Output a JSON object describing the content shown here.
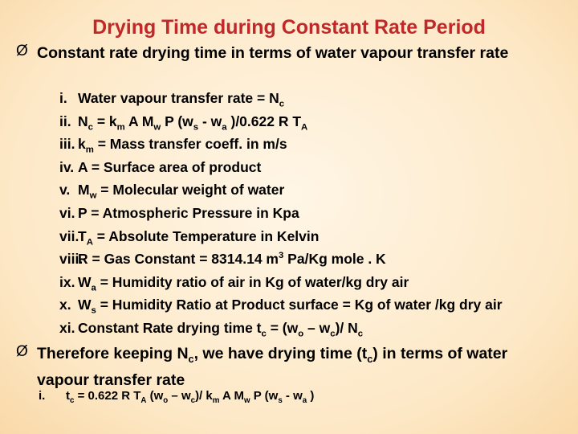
{
  "title": "Drying Time during Constant Rate Period",
  "bullets": [
    {
      "text": [
        "Constant rate drying time in terms of water vapour transfer rate"
      ],
      "items": [
        {
          "num": "i.",
          "text": [
            "Water vapour transfer rate = N",
            {
              "sub": "c"
            }
          ]
        },
        {
          "num": "ii.",
          "text": [
            "N",
            {
              "sub": "c"
            },
            " = k",
            {
              "sub": "m"
            },
            " A M",
            {
              "sub": "w"
            },
            " P (w",
            {
              "sub": "s"
            },
            " - w",
            {
              "sub": "a"
            },
            " )/0.622 R T",
            {
              "sub": "A"
            }
          ]
        },
        {
          "num": "iii.",
          "text": [
            "k",
            {
              "sub": "m"
            },
            " = Mass transfer coeff. in m/s"
          ]
        },
        {
          "num": "iv.",
          "text": [
            "A = Surface area of product"
          ]
        },
        {
          "num": "v.",
          "text": [
            "M",
            {
              "sub": "w"
            },
            " = Molecular weight of water"
          ]
        },
        {
          "num": "vi.",
          "text": [
            "P = Atmospheric Pressure in Kpa"
          ]
        },
        {
          "num": "vii.",
          "text": [
            "T",
            {
              "sub": "A"
            },
            " = Absolute Temperature in Kelvin"
          ]
        },
        {
          "num": "viii.",
          "text": [
            "R = Gas Constant = 8314.14 m",
            {
              "sup": "3"
            },
            "  Pa/Kg mole . K"
          ]
        },
        {
          "num": "ix.",
          "text": [
            "W",
            {
              "sub": "a"
            },
            " = Humidity ratio of air in Kg of water/kg dry air"
          ]
        },
        {
          "num": "x.",
          "text": [
            "W",
            {
              "sub": "s"
            },
            " = Humidity Ratio at Product surface = Kg of water /kg dry air"
          ]
        },
        {
          "num": "xi.",
          "text": [
            "Constant Rate drying time t",
            {
              "sub": "c"
            },
            " = (w",
            {
              "sub": "o"
            },
            " – w",
            {
              "sub": "c"
            },
            ")/ N",
            {
              "sub": "c"
            }
          ]
        }
      ]
    },
    {
      "text": [
        "Therefore keeping N",
        {
          "sub": "c"
        },
        ", we have drying time (t",
        {
          "sub": "c"
        },
        ") in terms of water vapour transfer rate"
      ],
      "items": [
        {
          "num": "i.",
          "text": [
            "t",
            {
              "sub": "c"
            },
            " = 0.622 R T",
            {
              "sub": "A"
            },
            " (w",
            {
              "sub": "o"
            },
            " – w",
            {
              "sub": "c"
            },
            ")/ k",
            {
              "sub": "m"
            },
            "  A M",
            {
              "sub": "w"
            },
            "  P (w",
            {
              "sub": "s"
            },
            "  - w",
            {
              "sub": "a"
            },
            " )"
          ]
        }
      ]
    }
  ]
}
